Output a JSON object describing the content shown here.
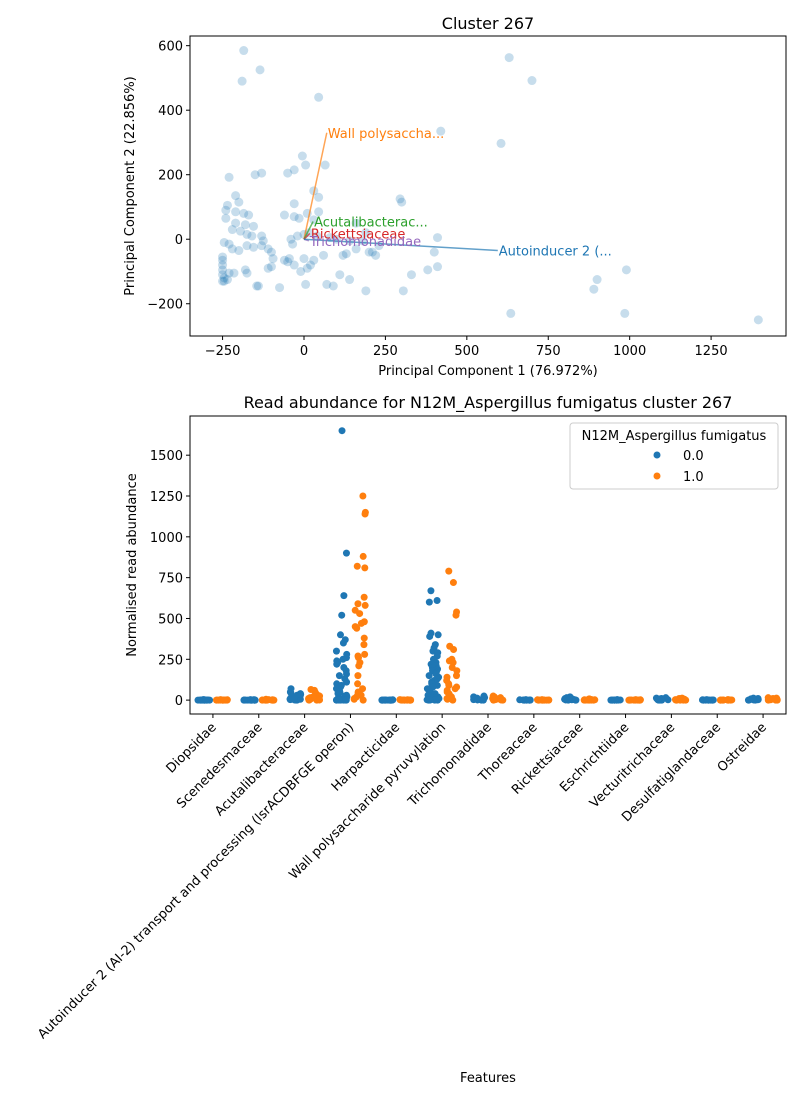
{
  "chart_data": [
    {
      "type": "scatter",
      "title": "Cluster 267",
      "xlabel": "Principal Component 1 (76.972%)",
      "ylabel": "Principal Component 2 (22.856%)",
      "xlim": [
        -350,
        1480
      ],
      "ylim": [
        -300,
        630
      ],
      "xticks": [
        -250,
        0,
        250,
        500,
        750,
        1000,
        1250
      ],
      "yticks": [
        -200,
        0,
        200,
        400,
        600
      ],
      "grid": false,
      "point_color": "#1f77b4",
      "points": [
        [
          -185,
          585
        ],
        [
          -135,
          525
        ],
        [
          -190,
          490
        ],
        [
          45,
          440
        ],
        [
          420,
          335
        ],
        [
          630,
          563
        ],
        [
          700,
          492
        ],
        [
          605,
          297
        ],
        [
          -5,
          258
        ],
        [
          5,
          230
        ],
        [
          65,
          230
        ],
        [
          -50,
          205
        ],
        [
          -30,
          215
        ],
        [
          -130,
          205
        ],
        [
          -150,
          200
        ],
        [
          -230,
          192
        ],
        [
          -210,
          135
        ],
        [
          -200,
          115
        ],
        [
          -30,
          110
        ],
        [
          295,
          125
        ],
        [
          300,
          115
        ],
        [
          45,
          130
        ],
        [
          30,
          150
        ],
        [
          -235,
          105
        ],
        [
          -240,
          90
        ],
        [
          -210,
          85
        ],
        [
          -185,
          80
        ],
        [
          -170,
          75
        ],
        [
          -240,
          65
        ],
        [
          -210,
          50
        ],
        [
          -180,
          45
        ],
        [
          -155,
          40
        ],
        [
          -220,
          30
        ],
        [
          -195,
          25
        ],
        [
          -175,
          15
        ],
        [
          -160,
          10
        ],
        [
          -130,
          10
        ],
        [
          -245,
          -10
        ],
        [
          -230,
          -15
        ],
        [
          -220,
          -30
        ],
        [
          -200,
          -35
        ],
        [
          -175,
          -20
        ],
        [
          -155,
          -25
        ],
        [
          -130,
          -20
        ],
        [
          -125,
          -5
        ],
        [
          -110,
          -30
        ],
        [
          -100,
          -40
        ],
        [
          -95,
          -60
        ],
        [
          -60,
          -65
        ],
        [
          -50,
          -70
        ],
        [
          -30,
          -80
        ],
        [
          -10,
          -100
        ],
        [
          10,
          -90
        ],
        [
          20,
          -80
        ],
        [
          0,
          -60
        ],
        [
          30,
          -65
        ],
        [
          60,
          -50
        ],
        [
          120,
          -50
        ],
        [
          130,
          -45
        ],
        [
          160,
          -30
        ],
        [
          -250,
          -55
        ],
        [
          -250,
          -65
        ],
        [
          -250,
          -80
        ],
        [
          -250,
          -95
        ],
        [
          -250,
          -110
        ],
        [
          -245,
          -120
        ],
        [
          -250,
          -130
        ],
        [
          -245,
          -130
        ],
        [
          -235,
          -125
        ],
        [
          -230,
          -105
        ],
        [
          -215,
          -105
        ],
        [
          -180,
          -95
        ],
        [
          -175,
          -105
        ],
        [
          -145,
          -145
        ],
        [
          -140,
          -145
        ],
        [
          -75,
          -150
        ],
        [
          5,
          -140
        ],
        [
          70,
          -140
        ],
        [
          90,
          -145
        ],
        [
          110,
          -110
        ],
        [
          140,
          -125
        ],
        [
          190,
          -160
        ],
        [
          -100,
          -85
        ],
        [
          -110,
          -90
        ],
        [
          -45,
          -60
        ],
        [
          -35,
          -15
        ],
        [
          -40,
          0
        ],
        [
          -20,
          10
        ],
        [
          0,
          15
        ],
        [
          15,
          20
        ],
        [
          40,
          10
        ],
        [
          80,
          5
        ],
        [
          100,
          0
        ],
        [
          140,
          -5
        ],
        [
          210,
          -40
        ],
        [
          230,
          -20
        ],
        [
          330,
          -110
        ],
        [
          380,
          -95
        ],
        [
          400,
          -40
        ],
        [
          410,
          -85
        ],
        [
          305,
          -160
        ],
        [
          410,
          5
        ],
        [
          190,
          20
        ],
        [
          160,
          50
        ],
        [
          180,
          -5
        ],
        [
          200,
          -40
        ],
        [
          220,
          -50
        ],
        [
          30,
          60
        ],
        [
          45,
          85
        ],
        [
          10,
          80
        ],
        [
          -60,
          75
        ],
        [
          -30,
          70
        ],
        [
          -15,
          65
        ],
        [
          635,
          -230
        ],
        [
          890,
          -155
        ],
        [
          900,
          -125
        ],
        [
          990,
          -95
        ],
        [
          985,
          -230
        ],
        [
          1395,
          -250
        ]
      ],
      "vectors": [
        {
          "label": "Wall polysaccha...",
          "color": "#ff7f0e",
          "x": 70,
          "y": 330
        },
        {
          "label": "Acutalibacterac...",
          "color": "#2ca02c",
          "x": 28,
          "y": 55
        },
        {
          "label": "Rickettsiaceae",
          "color": "#d62728",
          "x": 18,
          "y": 18
        },
        {
          "label": "Trichomonadidae",
          "color": "#9467bd",
          "x": 15,
          "y": -5
        },
        {
          "label": "Autoinducer 2 (...",
          "color": "#1f77b4",
          "x": 595,
          "y": -35
        }
      ]
    },
    {
      "type": "scatter",
      "title": "Read abundance for N12M_Aspergillus fumigatus cluster 267",
      "xlabel": "Features",
      "ylabel": "Normalised read abundance",
      "ylim": [
        -85,
        1740
      ],
      "yticks": [
        0,
        250,
        500,
        750,
        1000,
        1250,
        1500
      ],
      "grid": false,
      "legend": {
        "title": "N12M_Aspergillus fumigatus",
        "placement": "top-right",
        "entries": [
          {
            "label": "0.0",
            "color": "#1f77b4"
          },
          {
            "label": "1.0",
            "color": "#ff7f0e"
          }
        ]
      },
      "categories": [
        "Diopsidae",
        "Scenedesmaceae",
        "Acutalibacteraceae",
        "Autoinducer 2 (AI-2) transport and processing (lsrACDBFGE operon)",
        "Harpacticidae",
        "Wall polysaccharide pyruvylation",
        "Trichomonadidae",
        "Thoreaceae",
        "Rickettsiaceae",
        "Eschrichtiidae",
        "Vecturitrichaceae",
        "Desulfatiglandaceae",
        "Ostreidae"
      ],
      "series": [
        {
          "name": "0.0",
          "color": "#1f77b4",
          "values": [
            [
              0,
              0,
              0,
              2,
              0,
              0,
              1,
              0,
              3,
              0,
              0,
              0,
              0,
              0,
              1,
              0,
              2,
              0,
              0,
              0
            ],
            [
              0,
              0,
              0,
              1,
              0,
              2,
              0,
              0,
              1,
              0,
              0,
              3,
              0,
              0,
              1,
              0,
              0,
              0,
              2,
              0
            ],
            [
              0,
              2,
              5,
              8,
              12,
              18,
              25,
              30,
              40,
              50,
              70,
              3,
              6,
              15,
              22,
              0,
              1,
              10,
              35,
              45
            ],
            [
              1650,
              900,
              640,
              520,
              400,
              370,
              350,
              300,
              280,
              260,
              250,
              240,
              230,
              220,
              200,
              180,
              160,
              150,
              130,
              110,
              100,
              90,
              80,
              70,
              60,
              50,
              40,
              30,
              25,
              20,
              15,
              10,
              8,
              5,
              3,
              2,
              1,
              0,
              0,
              0,
              0,
              0,
              0,
              0
            ],
            [
              0,
              0,
              0,
              1,
              0,
              0,
              2,
              0,
              0,
              0,
              1,
              0,
              0,
              0,
              0,
              0,
              1,
              0
            ],
            [
              670,
              610,
              600,
              410,
              400,
              390,
              340,
              320,
              300,
              290,
              270,
              250,
              230,
              220,
              210,
              200,
              190,
              180,
              170,
              160,
              150,
              140,
              130,
              120,
              110,
              100,
              90,
              80,
              70,
              60,
              50,
              40,
              30,
              20,
              15,
              10,
              5,
              2,
              0,
              0,
              0,
              0
            ],
            [
              0,
              2,
              5,
              10,
              15,
              20,
              25,
              3,
              8,
              0,
              12,
              1
            ],
            [
              0,
              1,
              0,
              2,
              0,
              0,
              1,
              0,
              3,
              0,
              0,
              0,
              1,
              0
            ],
            [
              0,
              2,
              5,
              10,
              15,
              20,
              3,
              8,
              1,
              0,
              12,
              0
            ],
            [
              0,
              0,
              1,
              0,
              2,
              0,
              0,
              1,
              0,
              0,
              3,
              0,
              0,
              0
            ],
            [
              0,
              2,
              5,
              10,
              15,
              3,
              8,
              1,
              0,
              0,
              12,
              0
            ],
            [
              0,
              0,
              1,
              0,
              2,
              0,
              0,
              1,
              0,
              0,
              0,
              0,
              3,
              0
            ],
            [
              0,
              2,
              4,
              6,
              8,
              10,
              3,
              1,
              0,
              0,
              5,
              12
            ]
          ]
        },
        {
          "name": "1.0",
          "color": "#ff7f0e",
          "values": [
            [
              0,
              0,
              1,
              0,
              2,
              0,
              0,
              1,
              0,
              0,
              3,
              0,
              0,
              0,
              1,
              0
            ],
            [
              0,
              1,
              0,
              2,
              0,
              0,
              3,
              0,
              5,
              0,
              1,
              0,
              0,
              2,
              0,
              0
            ],
            [
              0,
              2,
              5,
              10,
              15,
              20,
              30,
              45,
              60,
              65,
              3,
              8,
              12,
              25,
              1,
              0
            ],
            [
              1250,
              1150,
              1140,
              880,
              820,
              810,
              630,
              590,
              580,
              550,
              530,
              480,
              470,
              450,
              440,
              380,
              340,
              280,
              270,
              260,
              230,
              210,
              150,
              100,
              70,
              50,
              40,
              30,
              20,
              10,
              5,
              0
            ],
            [
              0,
              1,
              0,
              2,
              0,
              0,
              1,
              0,
              0,
              3,
              0,
              0,
              1,
              0,
              0,
              0
            ],
            [
              790,
              720,
              540,
              520,
              330,
              310,
              250,
              240,
              230,
              200,
              180,
              150,
              140,
              120,
              100,
              90,
              80,
              70,
              60,
              50,
              40,
              30,
              20,
              10,
              5,
              0
            ],
            [
              0,
              2,
              5,
              10,
              15,
              20,
              25,
              3,
              8,
              1,
              0,
              12
            ],
            [
              0,
              1,
              0,
              2,
              0,
              0,
              1,
              0,
              3,
              0,
              0,
              0,
              1,
              0
            ],
            [
              0,
              2,
              0,
              5,
              1,
              0,
              8,
              0,
              3,
              0,
              0,
              2
            ],
            [
              0,
              0,
              1,
              0,
              2,
              0,
              0,
              1,
              0,
              0,
              3,
              0,
              0,
              0
            ],
            [
              0,
              2,
              5,
              10,
              3,
              1,
              0,
              8,
              0,
              0,
              12,
              0
            ],
            [
              0,
              1,
              0,
              2,
              0,
              0,
              1,
              0,
              0,
              3,
              0,
              0,
              1,
              0
            ],
            [
              0,
              2,
              4,
              8,
              12,
              15,
              3,
              1,
              0,
              6,
              10,
              0
            ]
          ]
        }
      ]
    }
  ]
}
